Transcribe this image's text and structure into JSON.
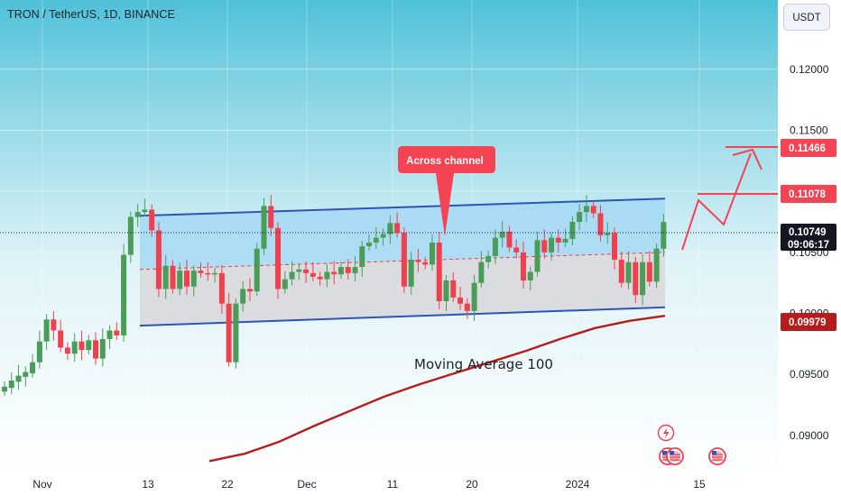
{
  "header": {
    "symbol_title": "TRON / TetherUS, 1D, BINANCE",
    "currency": "USDT"
  },
  "colors": {
    "up": "#4a9d58",
    "down": "#f0404e",
    "ma": "#b71c1c",
    "channel_line": "#2d55b8",
    "channel_fill": "#a6d8f5",
    "lower_fill": "#d9d9dc",
    "annotation": "#f44352",
    "bg_top": "#4fc1d8",
    "bg_bottom": "#ffffff",
    "price_tag_current": "#131722"
  },
  "chart_data": {
    "type": "candlestick",
    "y_axis": {
      "ylim": [
        0.08667,
        0.12567
      ],
      "ticks": [
        "0.12000",
        "0.11500",
        "0.11000",
        "0.10500",
        "0.10000",
        "0.09500",
        "0.09000"
      ]
    },
    "x_axis": {
      "ticks": [
        "Nov",
        "13",
        "22",
        "Dec",
        "11",
        "20",
        "2024",
        "15"
      ]
    },
    "candles": [
      {
        "o": 0.0936,
        "c": 0.094
      },
      {
        "o": 0.0939,
        "c": 0.0945
      },
      {
        "o": 0.0944,
        "c": 0.0949
      },
      {
        "o": 0.0948,
        "c": 0.0952
      },
      {
        "o": 0.0951,
        "c": 0.096
      },
      {
        "o": 0.096,
        "c": 0.0977
      },
      {
        "o": 0.0977,
        "c": 0.0995
      },
      {
        "o": 0.0995,
        "c": 0.0986
      },
      {
        "o": 0.0986,
        "c": 0.0972
      },
      {
        "o": 0.0972,
        "c": 0.0967
      },
      {
        "o": 0.0967,
        "c": 0.0977
      },
      {
        "o": 0.0977,
        "c": 0.097
      },
      {
        "o": 0.097,
        "c": 0.0978
      },
      {
        "o": 0.0978,
        "c": 0.0963
      },
      {
        "o": 0.0963,
        "c": 0.0979
      },
      {
        "o": 0.0979,
        "c": 0.0986
      },
      {
        "o": 0.0986,
        "c": 0.0982
      },
      {
        "o": 0.0982,
        "c": 0.1048
      },
      {
        "o": 0.1048,
        "c": 0.1079
      },
      {
        "o": 0.1079,
        "c": 0.1083
      },
      {
        "o": 0.1083,
        "c": 0.1085
      },
      {
        "o": 0.1085,
        "c": 0.1068
      },
      {
        "o": 0.1068,
        "c": 0.102
      },
      {
        "o": 0.102,
        "c": 0.1039
      },
      {
        "o": 0.1039,
        "c": 0.102
      },
      {
        "o": 0.102,
        "c": 0.1035
      },
      {
        "o": 0.1035,
        "c": 0.1022
      },
      {
        "o": 0.1022,
        "c": 0.1035
      },
      {
        "o": 0.1035,
        "c": 0.1033
      },
      {
        "o": 0.1033,
        "c": 0.1032
      },
      {
        "o": 0.1032,
        "c": 0.1033
      },
      {
        "o": 0.1033,
        "c": 0.1008
      },
      {
        "o": 0.1008,
        "c": 0.096
      },
      {
        "o": 0.096,
        "c": 0.1008
      },
      {
        "o": 0.1008,
        "c": 0.102
      },
      {
        "o": 0.102,
        "c": 0.1018
      },
      {
        "o": 0.1018,
        "c": 0.1053
      },
      {
        "o": 0.1053,
        "c": 0.1088
      },
      {
        "o": 0.1088,
        "c": 0.107
      },
      {
        "o": 0.107,
        "c": 0.102
      },
      {
        "o": 0.102,
        "c": 0.1028
      },
      {
        "o": 0.1028,
        "c": 0.1034
      },
      {
        "o": 0.1034,
        "c": 0.1036
      },
      {
        "o": 0.1036,
        "c": 0.1033
      },
      {
        "o": 0.1033,
        "c": 0.103
      },
      {
        "o": 0.103,
        "c": 0.1028
      },
      {
        "o": 0.1028,
        "c": 0.1034
      },
      {
        "o": 0.1034,
        "c": 0.1032
      },
      {
        "o": 0.1032,
        "c": 0.1038
      },
      {
        "o": 0.1038,
        "c": 0.1033
      },
      {
        "o": 0.1033,
        "c": 0.1038
      },
      {
        "o": 0.1038,
        "c": 0.1055
      },
      {
        "o": 0.1055,
        "c": 0.1058
      },
      {
        "o": 0.1058,
        "c": 0.1062
      },
      {
        "o": 0.1062,
        "c": 0.1065
      },
      {
        "o": 0.1065,
        "c": 0.1074
      },
      {
        "o": 0.1074,
        "c": 0.1066
      },
      {
        "o": 0.1066,
        "c": 0.1022
      },
      {
        "o": 0.1022,
        "c": 0.1044
      },
      {
        "o": 0.1044,
        "c": 0.1042
      },
      {
        "o": 0.1042,
        "c": 0.104
      },
      {
        "o": 0.104,
        "c": 0.1058
      },
      {
        "o": 0.1058,
        "c": 0.101
      },
      {
        "o": 0.101,
        "c": 0.1027
      },
      {
        "o": 0.1027,
        "c": 0.1013
      },
      {
        "o": 0.1013,
        "c": 0.1008
      },
      {
        "o": 0.1008,
        "c": 0.1002
      },
      {
        "o": 0.1002,
        "c": 0.1025
      },
      {
        "o": 0.1025,
        "c": 0.1042
      },
      {
        "o": 0.1042,
        "c": 0.1047
      },
      {
        "o": 0.1047,
        "c": 0.1062
      },
      {
        "o": 0.1062,
        "c": 0.1067
      },
      {
        "o": 0.1067,
        "c": 0.1054
      },
      {
        "o": 0.1054,
        "c": 0.105
      },
      {
        "o": 0.105,
        "c": 0.1027
      },
      {
        "o": 0.1027,
        "c": 0.1034
      },
      {
        "o": 0.1034,
        "c": 0.106
      },
      {
        "o": 0.106,
        "c": 0.105
      },
      {
        "o": 0.105,
        "c": 0.1062
      },
      {
        "o": 0.1062,
        "c": 0.1058
      },
      {
        "o": 0.1058,
        "c": 0.1061
      },
      {
        "o": 0.1061,
        "c": 0.1075
      },
      {
        "o": 0.1075,
        "c": 0.1083
      },
      {
        "o": 0.1083,
        "c": 0.1088
      },
      {
        "o": 0.1088,
        "c": 0.1082
      },
      {
        "o": 0.1082,
        "c": 0.1064
      },
      {
        "o": 0.1064,
        "c": 0.1066
      },
      {
        "o": 0.1066,
        "c": 0.1044
      },
      {
        "o": 0.1044,
        "c": 0.1025
      },
      {
        "o": 0.1025,
        "c": 0.1042
      },
      {
        "o": 0.1042,
        "c": 0.1015
      },
      {
        "o": 0.1015,
        "c": 0.1042
      },
      {
        "o": 0.1042,
        "c": 0.1026
      },
      {
        "o": 0.1026,
        "c": 0.1053
      },
      {
        "o": 0.1053,
        "c": 0.1075
      }
    ],
    "channel": {
      "upper": [
        [
          0.108,
          0.1094
        ]
      ],
      "lower": [
        [
          0.099,
          0.1005
        ]
      ],
      "mid": [
        [
          0.1036,
          0.105
        ]
      ]
    },
    "moving_average": {
      "label": "Moving Average 100",
      "values": [
        0.0879,
        0.0885,
        0.0895,
        0.0908,
        0.092,
        0.0932,
        0.0942,
        0.0951,
        0.096,
        0.0969,
        0.0979,
        0.0988,
        0.0994,
        0.0998
      ]
    },
    "annotation": {
      "text": "Across channel"
    },
    "price_tags": {
      "current": {
        "value": "0.10749",
        "countdown": "09:06:17"
      },
      "levels": [
        "0.11466",
        "0.11078",
        "0.09979"
      ]
    }
  }
}
